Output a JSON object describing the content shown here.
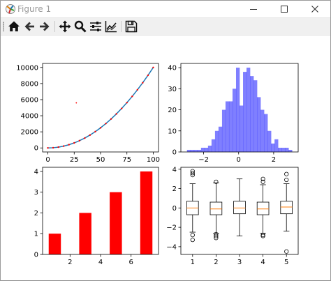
{
  "window": {
    "title": "Figure 1",
    "app_icon": "matplotlib-icon",
    "controls": [
      "minimize-icon",
      "maximize-icon",
      "close-icon"
    ]
  },
  "toolbar": {
    "buttons": [
      {
        "name": "home-button",
        "icon": "home-icon"
      },
      {
        "name": "back-button",
        "icon": "arrow-left-icon"
      },
      {
        "name": "forward-button",
        "icon": "arrow-right-icon"
      },
      {
        "name": "pan-button",
        "icon": "move-icon"
      },
      {
        "name": "zoom-button",
        "icon": "magnifier-icon"
      },
      {
        "name": "subplots-button",
        "icon": "sliders-icon"
      },
      {
        "name": "edit-axes-button",
        "icon": "chart-line-icon"
      },
      {
        "name": "save-button",
        "icon": "floppy-disk-icon"
      }
    ]
  },
  "chart_data": [
    {
      "type": "line",
      "position_hint": "top-left",
      "x": [
        0,
        5,
        10,
        15,
        20,
        25,
        30,
        35,
        40,
        45,
        50,
        55,
        60,
        65,
        70,
        75,
        80,
        85,
        90,
        95,
        100
      ],
      "series": [
        {
          "style": "line",
          "color": "#1f77b4",
          "values": [
            0,
            25,
            100,
            225,
            400,
            625,
            900,
            1225,
            1600,
            2025,
            2500,
            3025,
            3600,
            4225,
            4900,
            5625,
            6400,
            7225,
            8100,
            9025,
            10000
          ]
        },
        {
          "style": "dotted-markers",
          "color": "#ff0000",
          "values": [
            0,
            25,
            100,
            225,
            400,
            625,
            900,
            1225,
            1600,
            2025,
            2500,
            3025,
            3600,
            4225,
            4900,
            5625,
            6400,
            7225,
            8100,
            9025,
            10000
          ]
        }
      ],
      "outlier": {
        "x": 27,
        "y": 5600,
        "color": "#ff0000"
      },
      "xticks": [
        0,
        25,
        50,
        75,
        100
      ],
      "yticks": [
        0,
        2000,
        4000,
        6000,
        8000,
        10000
      ],
      "xlim": [
        -5,
        105
      ],
      "ylim": [
        -500,
        10500
      ]
    },
    {
      "type": "bar",
      "subtype": "histogram",
      "position_hint": "top-right",
      "color": "#0000ff",
      "alpha": 0.5,
      "bin_start": -2.95,
      "bin_width": 0.2,
      "values": [
        1,
        1,
        1,
        1,
        2,
        2,
        3,
        6,
        10,
        12,
        20,
        24,
        24,
        30,
        40,
        22,
        38,
        40,
        36,
        34,
        26,
        20,
        18,
        10,
        4,
        6,
        2,
        2,
        2,
        1
      ],
      "xticks": [
        -2,
        0,
        2
      ],
      "yticks": [
        0,
        10,
        20,
        30,
        40
      ],
      "xlim": [
        -3.3,
        3.4
      ],
      "ylim": [
        0,
        42
      ]
    },
    {
      "type": "bar",
      "position_hint": "bottom-left",
      "color": "#ff0000",
      "x": [
        1,
        3,
        5,
        7
      ],
      "values": [
        1,
        2,
        3,
        4
      ],
      "bar_width": 0.8,
      "xticks": [
        2,
        4,
        6
      ],
      "yticks": [
        0,
        1,
        2,
        3,
        4
      ],
      "xlim": [
        0.2,
        7.8
      ],
      "ylim": [
        0,
        4.2
      ]
    },
    {
      "type": "boxplot",
      "position_hint": "bottom-right",
      "median_color": "#ff7f0e",
      "categories": [
        "1",
        "2",
        "3",
        "4",
        "5"
      ],
      "boxes": [
        {
          "q1": -0.7,
          "median": 0.0,
          "q3": 0.7,
          "whisker_low": -2.5,
          "whisker_high": 2.5,
          "fliers": [
            3.4,
            3.6,
            3.8,
            -2.8,
            -3.3
          ]
        },
        {
          "q1": -0.7,
          "median": -0.1,
          "q3": 0.6,
          "whisker_low": -2.6,
          "whisker_high": 2.6,
          "fliers": [
            2.7,
            -2.7,
            -2.9,
            -3.1
          ]
        },
        {
          "q1": -0.6,
          "median": 0.0,
          "q3": 0.7,
          "whisker_low": -2.9,
          "whisker_high": 3.0,
          "fliers": []
        },
        {
          "q1": -0.7,
          "median": -0.1,
          "q3": 0.6,
          "whisker_low": -2.6,
          "whisker_high": 2.4,
          "fliers": [
            2.7,
            3.0,
            -2.8,
            -2.9
          ]
        },
        {
          "q1": -0.6,
          "median": 0.1,
          "q3": 0.7,
          "whisker_low": -2.4,
          "whisker_high": 2.5,
          "fliers": [
            2.9,
            3.5,
            -4.5
          ]
        }
      ],
      "yticks": [
        -4,
        -2,
        0,
        2,
        4
      ],
      "xlim": [
        0.5,
        5.5
      ],
      "ylim": [
        -4.8,
        4.2
      ]
    }
  ]
}
